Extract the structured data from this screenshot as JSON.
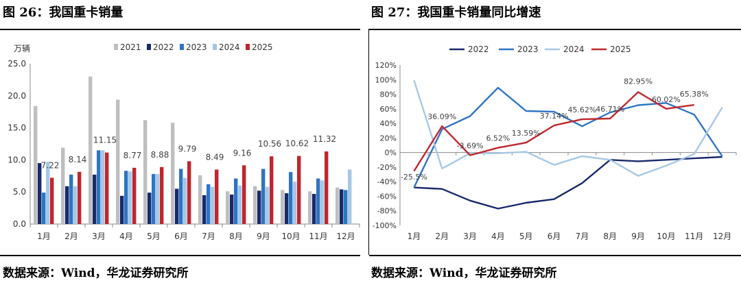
{
  "left": {
    "title": "图 26：我国重卡销量",
    "source": "数据来源：Wind，华龙证券研究所"
  },
  "right": {
    "title": "图 27：我国重卡销量同比增速",
    "source": "数据来源：Wind，华龙证券研究所"
  },
  "chart_data": [
    {
      "type": "bar",
      "unit_label": "万辆",
      "categories": [
        "1月",
        "2月",
        "3月",
        "4月",
        "5月",
        "6月",
        "7月",
        "8月",
        "9月",
        "10月",
        "11月",
        "12月"
      ],
      "ylim": [
        0,
        25
      ],
      "yticks": [
        "0.0",
        "5.0",
        "10.0",
        "15.0",
        "20.0",
        "25.0"
      ],
      "ytick_values": [
        0,
        5,
        10,
        15,
        20,
        25
      ],
      "grid": false,
      "legend_position": "top",
      "series": [
        {
          "name": "2021",
          "color": "#bfbfbf",
          "values": [
            18.4,
            11.9,
            23.0,
            19.4,
            16.2,
            15.8,
            7.6,
            5.1,
            5.9,
            5.3,
            5.1,
            5.7
          ]
        },
        {
          "name": "2022",
          "color": "#172a6b",
          "values": [
            9.5,
            5.9,
            7.7,
            4.4,
            4.9,
            5.5,
            4.5,
            4.6,
            5.2,
            4.8,
            4.7,
            5.4
          ]
        },
        {
          "name": "2023",
          "color": "#2e74c4",
          "values": [
            4.9,
            7.7,
            11.5,
            8.3,
            7.8,
            8.6,
            6.2,
            7.1,
            8.6,
            8.1,
            7.1,
            5.3
          ]
        },
        {
          "name": "2024",
          "color": "#a5c8e6",
          "values": [
            9.7,
            5.9,
            11.5,
            8.2,
            7.8,
            7.2,
            5.8,
            6.0,
            5.8,
            6.6,
            6.8,
            8.5
          ]
        },
        {
          "name": "2025",
          "color": "#c0262d",
          "values": [
            7.22,
            8.14,
            11.15,
            8.77,
            8.88,
            9.79,
            8.49,
            9.16,
            10.56,
            10.62,
            11.32,
            null
          ]
        }
      ],
      "data_labels": {
        "series": "2025",
        "labels": [
          "7.22",
          "8.14",
          "11.15",
          "8.77",
          "8.88",
          "9.79",
          "8.49",
          "9.16",
          "10.56",
          "10.62",
          "11.32",
          ""
        ]
      }
    },
    {
      "type": "line",
      "categories": [
        "1月",
        "2月",
        "3月",
        "4月",
        "5月",
        "6月",
        "7月",
        "8月",
        "9月",
        "10月",
        "11月",
        "12月"
      ],
      "ylim": [
        -100,
        120
      ],
      "yticks": [
        "-100%",
        "-80%",
        "-60%",
        "-40%",
        "-20%",
        "0%",
        "20%",
        "40%",
        "60%",
        "80%",
        "100%",
        "120%"
      ],
      "ytick_values": [
        -100,
        -80,
        -60,
        -40,
        -20,
        0,
        20,
        40,
        60,
        80,
        100,
        120
      ],
      "grid": false,
      "legend_position": "top",
      "series": [
        {
          "name": "2022",
          "color": "#172a6b",
          "values": [
            -48,
            -50,
            -66,
            -77,
            -69,
            -64,
            -42,
            -10,
            -12,
            -10,
            -8,
            -6
          ]
        },
        {
          "name": "2023",
          "color": "#2e74c4",
          "values": [
            -48,
            32,
            50,
            89,
            57,
            56,
            36,
            55,
            65,
            68,
            52,
            -5
          ]
        },
        {
          "name": "2024",
          "color": "#a5c8e6",
          "values": [
            99,
            -22,
            -1,
            -1,
            1,
            -17,
            -5,
            -10,
            -32,
            -18,
            -2,
            62
          ]
        },
        {
          "name": "2025",
          "color": "#c0262d",
          "values": [
            -25.5,
            36.09,
            -3.69,
            6.52,
            13.59,
            37.14,
            45.62,
            46.71,
            82.95,
            60.02,
            65.38,
            null
          ]
        }
      ],
      "data_labels": {
        "series": "2025",
        "labels": [
          "-25.5%",
          "36.09%",
          "-3.69%",
          "6.52%",
          "13.59%",
          "37.14%",
          "45.62%",
          "46.71%",
          "82.95%",
          "60.02%",
          "65.38%",
          ""
        ]
      }
    }
  ]
}
